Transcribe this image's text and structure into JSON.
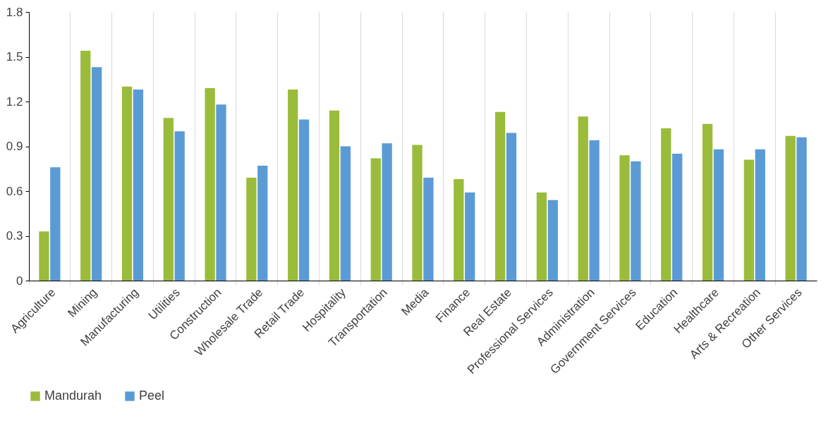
{
  "chart_data": {
    "type": "bar",
    "categories": [
      "Agriculture",
      "Mining",
      "Manufacturing",
      "Utilities",
      "Construction",
      "Wholesale Trade",
      "Retail Trade",
      "Hospitality",
      "Transportation",
      "Media",
      "Finance",
      "Real Estate",
      "Professional Services",
      "Administration",
      "Government Services",
      "Education",
      "Healthcare",
      "Arts & Recreation",
      "Other Services"
    ],
    "series": [
      {
        "name": "Mandurah",
        "color": "#9bbb3b",
        "values": [
          0.33,
          1.54,
          1.3,
          1.09,
          1.29,
          0.69,
          1.28,
          1.14,
          0.82,
          0.91,
          0.68,
          1.13,
          0.59,
          1.1,
          0.84,
          1.02,
          1.05,
          0.81,
          0.97
        ]
      },
      {
        "name": "Peel",
        "color": "#5b9bd5",
        "values": [
          0.76,
          1.43,
          1.28,
          1.0,
          1.18,
          0.77,
          1.08,
          0.9,
          0.92,
          0.69,
          0.59,
          0.99,
          0.54,
          0.94,
          0.8,
          0.85,
          0.88,
          0.88,
          0.96
        ]
      }
    ],
    "ylim": [
      0,
      1.8
    ],
    "yticks": [
      0,
      0.3,
      0.6,
      0.9,
      1.2,
      1.5,
      1.8
    ],
    "grid": "x",
    "legend": "bottom"
  }
}
